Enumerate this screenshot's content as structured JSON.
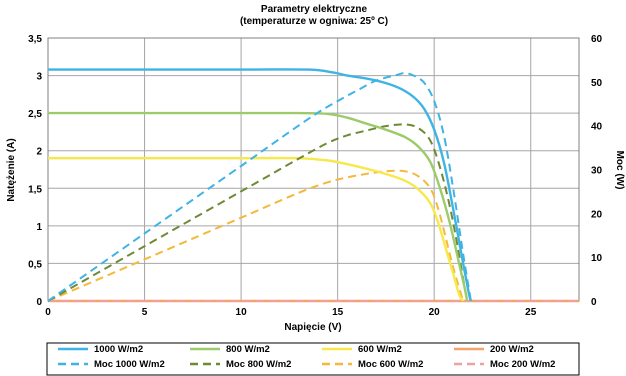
{
  "chart_data": {
    "type": "line",
    "title": "Parametry elektryczne",
    "subtitle": "(temperaturze w ogniwa: 25º C)",
    "xlabel": "Napięcie (V)",
    "ylabel": "Natężenie (A)",
    "y2label": "Moc (W)",
    "xlim": [
      0,
      27.5
    ],
    "ylim": [
      0,
      3.5
    ],
    "y2lim": [
      0,
      60
    ],
    "xticks": [
      "0",
      "5",
      "10",
      "15",
      "20",
      "25"
    ],
    "yticks": [
      "0",
      "0,5",
      "1",
      "1,5",
      "2",
      "2,5",
      "3",
      "3,5"
    ],
    "y2ticks": [
      "0",
      "10",
      "20",
      "30",
      "40",
      "50",
      "60"
    ],
    "grid": true,
    "legend_position": "bottom",
    "series": [
      {
        "name": "1000 W/m2",
        "axis": "left",
        "style": "solid",
        "color": "#3fb4e4",
        "x": [
          0,
          5,
          10,
          13.5,
          14.8,
          15.5,
          16.5,
          17.5,
          18.3,
          19,
          19.5,
          20,
          20.5,
          21,
          21.5,
          21.8,
          21.9
        ],
        "y": [
          3.08,
          3.08,
          3.08,
          3.08,
          3.04,
          3.0,
          2.96,
          2.9,
          2.82,
          2.7,
          2.55,
          2.28,
          1.85,
          1.2,
          0.5,
          0.1,
          0
        ]
      },
      {
        "name": "800 W/m2",
        "axis": "left",
        "style": "solid",
        "color": "#9ccb6a",
        "x": [
          0,
          5,
          10,
          13,
          14.5,
          15.5,
          16.5,
          17.5,
          18.5,
          19.2,
          19.8,
          20.3,
          20.8,
          21.2,
          21.6,
          21.7
        ],
        "y": [
          2.5,
          2.5,
          2.5,
          2.5,
          2.49,
          2.44,
          2.36,
          2.28,
          2.18,
          2.05,
          1.85,
          1.5,
          1.05,
          0.6,
          0.15,
          0
        ]
      },
      {
        "name": "600 W/m2",
        "axis": "left",
        "style": "solid",
        "color": "#f7e84b",
        "x": [
          0,
          5,
          10,
          13,
          14.5,
          15.5,
          16.5,
          17.5,
          18.5,
          19.2,
          19.8,
          20.2,
          20.6,
          21,
          21.3,
          21.5
        ],
        "y": [
          1.9,
          1.9,
          1.9,
          1.9,
          1.87,
          1.82,
          1.76,
          1.69,
          1.6,
          1.48,
          1.3,
          1.05,
          0.7,
          0.35,
          0.08,
          0
        ]
      },
      {
        "name": "200 W/m2",
        "axis": "left",
        "style": "solid",
        "color": "#f2a46a",
        "x": [
          0,
          27.5
        ],
        "y": [
          0,
          0
        ]
      },
      {
        "name": "Moc 1000 W/m2",
        "axis": "right",
        "style": "dashed",
        "color": "#3fb4e4",
        "x": [
          0,
          5,
          10,
          13.5,
          15,
          16,
          17,
          18,
          18.5,
          19,
          19.5,
          20,
          20.5,
          21,
          21.5,
          21.9
        ],
        "y": [
          0,
          15.4,
          30.8,
          41.6,
          45.6,
          48,
          50.3,
          51.5,
          52,
          51.3,
          49.7,
          45.6,
          37.9,
          25.2,
          10.8,
          0
        ]
      },
      {
        "name": "Moc 800 W/m2",
        "axis": "right",
        "style": "dashed",
        "color": "#6f8a35",
        "x": [
          0,
          5,
          10,
          13,
          14.5,
          15.5,
          16.5,
          17.5,
          18.5,
          19.2,
          19.8,
          20.3,
          20.8,
          21.2,
          21.7
        ],
        "y": [
          0,
          12.5,
          25,
          32.5,
          36.1,
          37.8,
          38.9,
          39.9,
          40.3,
          39.4,
          36.6,
          30.5,
          21.8,
          12.7,
          0
        ]
      },
      {
        "name": "Moc 600 W/m2",
        "axis": "right",
        "style": "dashed",
        "color": "#f5b83a",
        "x": [
          0,
          5,
          10,
          13,
          14.5,
          15.5,
          16.5,
          17.5,
          18.5,
          19.2,
          19.8,
          20.2,
          20.6,
          21,
          21.5
        ],
        "y": [
          0,
          9.5,
          19,
          24.7,
          27.1,
          28.2,
          29,
          29.6,
          29.6,
          28.4,
          25.7,
          21.2,
          14.4,
          7.4,
          0
        ]
      },
      {
        "name": "Moc 200 W/m2",
        "axis": "right",
        "style": "dashed",
        "color": "#f0a0a0",
        "x": [
          0,
          27.5
        ],
        "y": [
          0,
          0
        ]
      }
    ]
  }
}
